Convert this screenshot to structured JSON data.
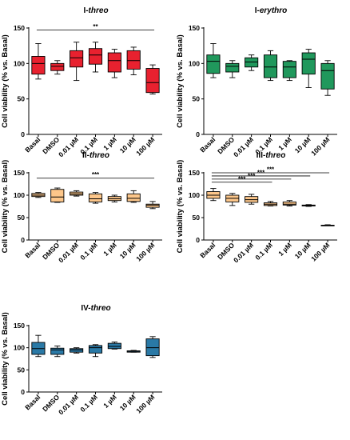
{
  "chart_data": [
    {
      "type": "boxplot",
      "title_parts": [
        {
          "text": "I-",
          "italic": false
        },
        {
          "text": "threo",
          "italic": true
        }
      ],
      "color": "#e8212f",
      "ylabel": "Cell viability (% vs. Basal)",
      "yticks": [
        0,
        50,
        100,
        150
      ],
      "ylim": [
        0,
        150
      ],
      "categories": [
        "Basal",
        "DMSO",
        "0.01 µM",
        "0.1 µM",
        "1 µM",
        "10 µM",
        "100 µM"
      ],
      "boxes": [
        {
          "min": 78,
          "q1": 85,
          "median": 100,
          "q3": 110,
          "max": 128
        },
        {
          "min": 85,
          "q1": 90,
          "median": 96,
          "q3": 100,
          "max": 104
        },
        {
          "min": 76,
          "q1": 95,
          "median": 108,
          "q3": 118,
          "max": 130
        },
        {
          "min": 88,
          "q1": 99,
          "median": 112,
          "q3": 121,
          "max": 130
        },
        {
          "min": 80,
          "q1": 88,
          "median": 104,
          "q3": 115,
          "max": 120
        },
        {
          "min": 84,
          "q1": 92,
          "median": 104,
          "q3": 118,
          "max": 123
        },
        {
          "min": 57,
          "q1": 59,
          "median": 73,
          "q3": 93,
          "max": 98
        }
      ],
      "sig": [
        {
          "from": 0,
          "to": 6,
          "label": "**",
          "y": 147
        }
      ]
    },
    {
      "type": "boxplot",
      "title_parts": [
        {
          "text": "I-",
          "italic": false
        },
        {
          "text": "erythro",
          "italic": true
        }
      ],
      "color": "#20985c",
      "ylabel": "Cell viability (% vs. Basal)",
      "yticks": [
        0,
        50,
        100,
        150
      ],
      "ylim": [
        0,
        150
      ],
      "categories": [
        "Basal",
        "DMSO",
        "0.01 µM",
        "0.1 µM",
        "1 µM",
        "10 µM",
        "100 µM"
      ],
      "boxes": [
        {
          "min": 80,
          "q1": 86,
          "median": 103,
          "q3": 112,
          "max": 128
        },
        {
          "min": 80,
          "q1": 88,
          "median": 96,
          "q3": 100,
          "max": 104
        },
        {
          "min": 90,
          "q1": 95,
          "median": 102,
          "q3": 108,
          "max": 112
        },
        {
          "min": 76,
          "q1": 80,
          "median": 95,
          "q3": 112,
          "max": 118
        },
        {
          "min": 76,
          "q1": 80,
          "median": 95,
          "q3": 103,
          "max": 104
        },
        {
          "min": 66,
          "q1": 85,
          "median": 106,
          "q3": 115,
          "max": 120
        },
        {
          "min": 55,
          "q1": 64,
          "median": 90,
          "q3": 100,
          "max": 104
        }
      ],
      "sig": []
    },
    {
      "type": "boxplot",
      "title_parts": [
        {
          "text": "II-",
          "italic": false
        },
        {
          "text": "threo",
          "italic": true
        }
      ],
      "color": "#fcc68a",
      "ylabel": "Cell viability (% vs. Basal)",
      "yticks": [
        0,
        50,
        100,
        150
      ],
      "ylim": [
        0,
        150
      ],
      "categories": [
        "Basal",
        "DMSO",
        "0.01 µM",
        "0.1 µM",
        "1 µM",
        "10 µM",
        "100 µM"
      ],
      "boxes": [
        {
          "min": 95,
          "q1": 97,
          "median": 100,
          "q3": 104,
          "max": 106
        },
        {
          "min": 84,
          "q1": 85,
          "median": 96,
          "q3": 113,
          "max": 116
        },
        {
          "min": 98,
          "q1": 100,
          "median": 103,
          "q3": 107,
          "max": 110
        },
        {
          "min": 82,
          "q1": 85,
          "median": 92,
          "q3": 103,
          "max": 106
        },
        {
          "min": 85,
          "q1": 88,
          "median": 92,
          "q3": 97,
          "max": 100
        },
        {
          "min": 84,
          "q1": 86,
          "median": 93,
          "q3": 103,
          "max": 110
        },
        {
          "min": 70,
          "q1": 73,
          "median": 78,
          "q3": 80,
          "max": 86
        }
      ],
      "sig": [
        {
          "from": 0,
          "to": 6,
          "label": "***",
          "y": 138
        }
      ]
    },
    {
      "type": "boxplot",
      "title_parts": [
        {
          "text": "III-",
          "italic": false
        },
        {
          "text": "threo",
          "italic": true
        }
      ],
      "color": "#fcc68a",
      "ylabel": "Cell viability (% vs. Basal)",
      "yticks": [
        0,
        50,
        100,
        150
      ],
      "ylim": [
        0,
        150
      ],
      "categories": [
        "Basal",
        "DMSO",
        "0.01 µM",
        "0.1 µM",
        "1 µM",
        "10 µM",
        "100 µM"
      ],
      "boxes": [
        {
          "min": 88,
          "q1": 93,
          "median": 100,
          "q3": 108,
          "max": 115
        },
        {
          "min": 77,
          "q1": 85,
          "median": 93,
          "q3": 100,
          "max": 104
        },
        {
          "min": 80,
          "q1": 84,
          "median": 90,
          "q3": 97,
          "max": 102
        },
        {
          "min": 76,
          "q1": 77,
          "median": 80,
          "q3": 83,
          "max": 86
        },
        {
          "min": 76,
          "q1": 78,
          "median": 80,
          "q3": 85,
          "max": 88
        },
        {
          "min": 75,
          "q1": 76,
          "median": 77,
          "q3": 78,
          "max": 79
        },
        {
          "min": 32,
          "q1": 32,
          "median": 33,
          "q3": 33,
          "max": 34
        }
      ],
      "sig": [
        {
          "from": 0,
          "to": 6,
          "label": "***",
          "y": 150
        },
        {
          "from": 0,
          "to": 5,
          "label": "***",
          "y": 143
        },
        {
          "from": 0,
          "to": 4,
          "label": "***",
          "y": 136
        },
        {
          "from": 0,
          "to": 3,
          "label": "***",
          "y": 129
        }
      ]
    },
    {
      "type": "boxplot",
      "title_parts": [
        {
          "text": "IV-",
          "italic": false
        },
        {
          "text": "threo",
          "italic": true
        }
      ],
      "color": "#2a79a6",
      "ylabel": "Cell viability (% vs. Basal)",
      "yticks": [
        0,
        50,
        100,
        150
      ],
      "ylim": [
        0,
        150
      ],
      "categories": [
        "Basal",
        "DMSO",
        "0.01 µM",
        "0.1 µM",
        "1 µM",
        "10 µM",
        "100 µM"
      ],
      "boxes": [
        {
          "min": 80,
          "q1": 85,
          "median": 98,
          "q3": 112,
          "max": 128
        },
        {
          "min": 80,
          "q1": 85,
          "median": 95,
          "q3": 99,
          "max": 104
        },
        {
          "min": 88,
          "q1": 90,
          "median": 95,
          "q3": 98,
          "max": 100
        },
        {
          "min": 80,
          "q1": 88,
          "median": 100,
          "q3": 105,
          "max": 107
        },
        {
          "min": 97,
          "q1": 98,
          "median": 103,
          "q3": 110,
          "max": 113
        },
        {
          "min": 90,
          "q1": 90,
          "median": 92,
          "q3": 93,
          "max": 94
        },
        {
          "min": 78,
          "q1": 82,
          "median": 100,
          "q3": 120,
          "max": 125
        }
      ],
      "sig": []
    }
  ]
}
